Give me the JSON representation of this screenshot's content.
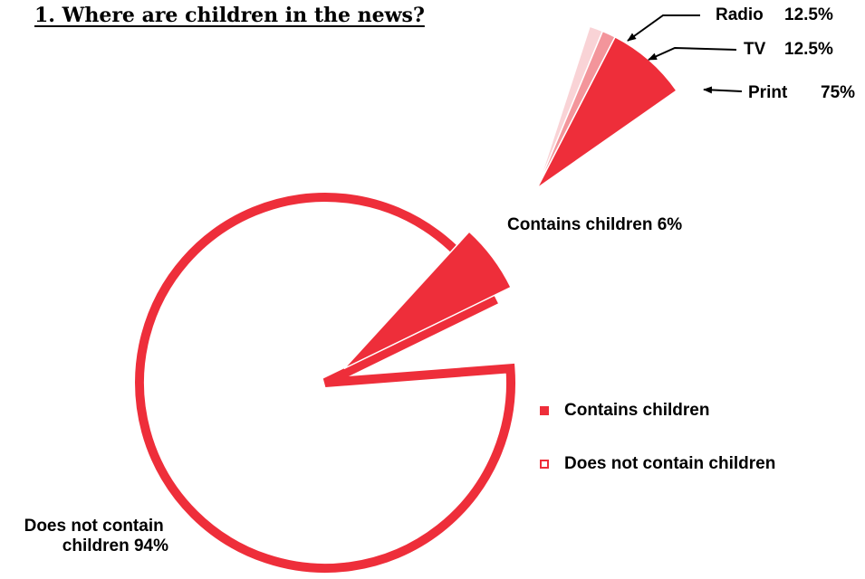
{
  "colors": {
    "main": "#ee2e3a",
    "radio": "#f9d3d6",
    "tv": "#f3959b",
    "print": "#ee2e3a",
    "outline_white": "#ffffff"
  },
  "chart_data": [
    {
      "type": "pie",
      "title": "1. Where are children in the news?",
      "slices": [
        {
          "name": "Contains children",
          "value": 6,
          "label": "Contains children 6%"
        },
        {
          "name": "Does not contain children",
          "value": 94,
          "label": "Does not contain\nchildren 94%"
        }
      ],
      "legend": {
        "position": "right",
        "entries": [
          "Contains children",
          "Does not contain children"
        ]
      }
    },
    {
      "type": "pie",
      "subset_of": "Contains children",
      "slices": [
        {
          "name": "Radio",
          "value": 12.5,
          "value_label": "12.5%"
        },
        {
          "name": "TV",
          "value": 12.5,
          "value_label": "12.5%"
        },
        {
          "name": "Print",
          "value": 75,
          "value_label": "75%"
        }
      ]
    }
  ]
}
